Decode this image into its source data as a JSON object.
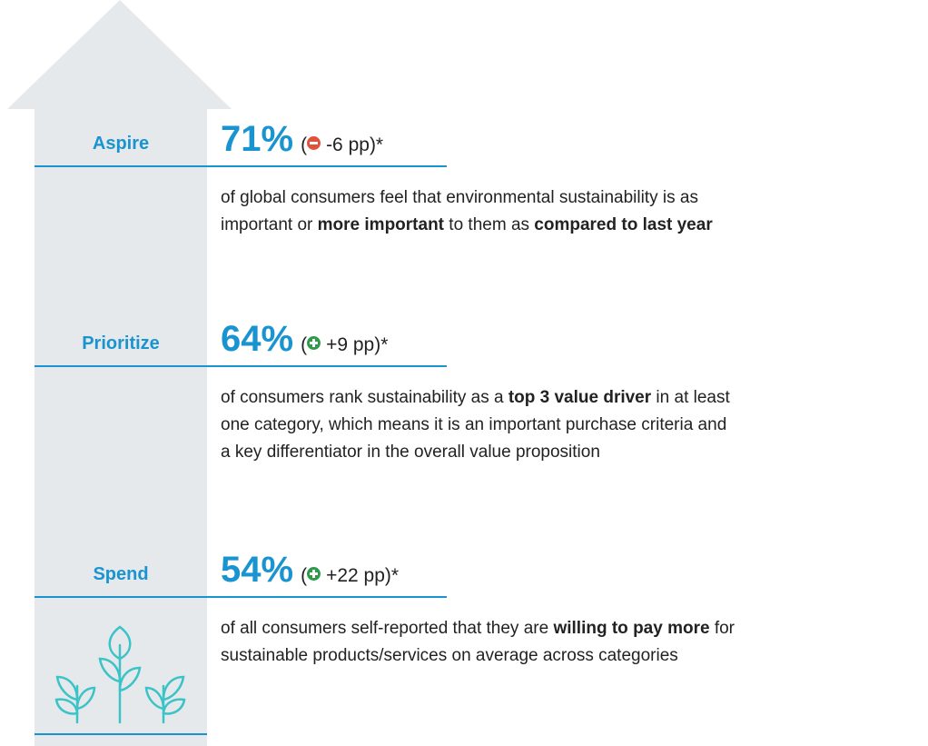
{
  "tiers": [
    {
      "label": "Aspire",
      "stat": "71%",
      "open": "(",
      "change": "-6 pp",
      "close": ")*",
      "description": [
        [
          {
            "text": "of global consumers feel that environmental sustainability is as",
            "bold": false
          }
        ],
        [
          {
            "text": "important or ",
            "bold": false
          },
          {
            "text": "more important",
            "bold": true
          },
          {
            "text": " to them as ",
            "bold": false
          },
          {
            "text": "compared to last year",
            "bold": true
          }
        ]
      ]
    },
    {
      "label": "Prioritize",
      "stat": "64%",
      "open": "(",
      "change": "+9 pp",
      "close": ")*",
      "description": [
        [
          {
            "text": "of consumers rank sustainability as a ",
            "bold": false
          },
          {
            "text": "top 3 value driver",
            "bold": true
          },
          {
            "text": " in at least",
            "bold": false
          }
        ],
        [
          {
            "text": "one category, which means it is an important purchase criteria and",
            "bold": false
          }
        ],
        [
          {
            "text": "a key differentiator in the overall value proposition",
            "bold": false
          }
        ]
      ]
    },
    {
      "label": "Spend",
      "stat": "54%",
      "open": "(",
      "change": "+22 pp",
      "close": ")*",
      "description": [
        [
          {
            "text": "of all consumers self-reported that they are ",
            "bold": false
          },
          {
            "text": "willing to pay more",
            "bold": true
          },
          {
            "text": " for",
            "bold": false
          }
        ],
        [
          {
            "text": "sustainable products/services on average across categories",
            "bold": false
          }
        ]
      ]
    }
  ]
}
